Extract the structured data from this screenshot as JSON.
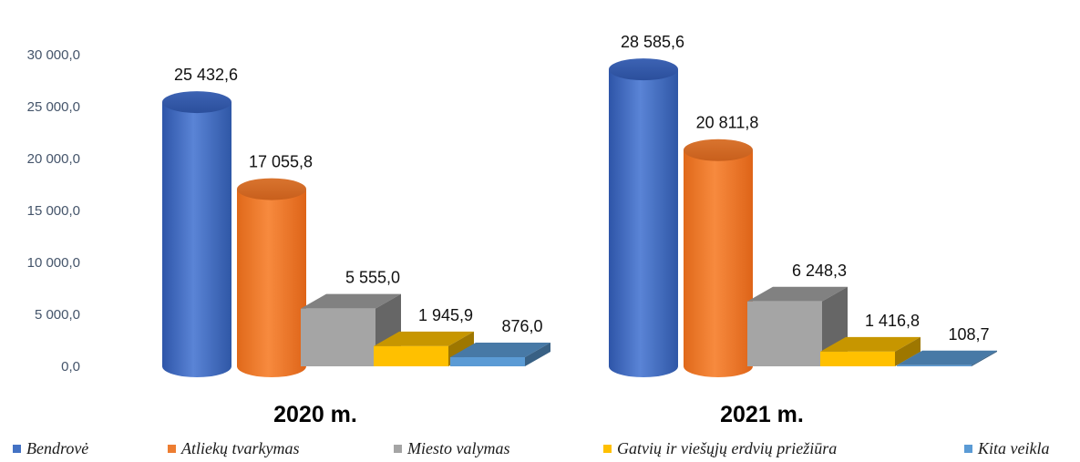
{
  "chart_data": {
    "type": "bar",
    "style": "3d-column",
    "categories": [
      "2020 m.",
      "2021 m."
    ],
    "series": [
      {
        "name": "Bendrovė",
        "shape": "cylinder",
        "color": "#4472c4",
        "values": [
          25432.6,
          28585.6
        ],
        "labels": [
          "25 432,6",
          "28 585,6"
        ]
      },
      {
        "name": "Atliekų tvarkymas",
        "shape": "cylinder",
        "color": "#ed7d31",
        "values": [
          17055.8,
          20811.8
        ],
        "labels": [
          "17 055,8",
          "20 811,8"
        ]
      },
      {
        "name": "Miesto valymas",
        "shape": "box",
        "color": "#a5a5a5",
        "values": [
          5555.0,
          6248.3
        ],
        "labels": [
          "5 555,0",
          "6 248,3"
        ]
      },
      {
        "name": "Gatvių ir viešųjų erdvių priežiūra",
        "shape": "box",
        "color": "#ffc000",
        "values": [
          1945.9,
          1416.8
        ],
        "labels": [
          "1 945,9",
          "1 416,8"
        ]
      },
      {
        "name": "Kita veikla",
        "shape": "box",
        "color": "#5b9bd5",
        "values": [
          876.0,
          108.7
        ],
        "labels": [
          "876,0",
          "108,7"
        ]
      }
    ],
    "y_ticks": [
      "0,0",
      "5 000,0",
      "10 000,0",
      "15 000,0",
      "20 000,0",
      "25 000,0",
      "30 000,0"
    ],
    "ylim": [
      0,
      30000
    ],
    "grid": false,
    "legend_position": "bottom",
    "title": "",
    "xlabel": "",
    "ylabel": ""
  }
}
